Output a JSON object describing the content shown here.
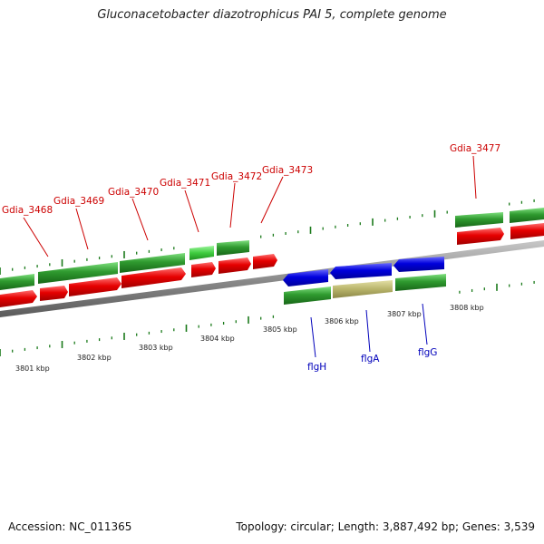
{
  "title": "Gluconacetobacter diazotrophicus PAI 5, complete genome",
  "footer": {
    "accession": "Accession: NC_011365",
    "topology": "Topology: circular; Length: 3,887,492 bp; Genes: 3,539"
  },
  "colors": {
    "backbone": "#8c8c8c",
    "forward_gene": "#2f9a2f",
    "forward_gene_light": "#3fcc3f",
    "cds": "#e60000",
    "reverse_gene": "#0000dd",
    "reverse_cds": "#2f9a2f",
    "pseudo": "#b8b46a",
    "forward_label": "#cc0000",
    "reverse_label": "#0000bb",
    "tick": "#1a7a1a"
  },
  "scale_labels": [
    "3801 kbp",
    "3802 kbp",
    "3803 kbp",
    "3804 kbp",
    "3805 kbp",
    "3806 kbp",
    "3807 kbp",
    "3808 kbp"
  ],
  "forward_gene_labels": [
    "Gdia_3468",
    "Gdia_3469",
    "Gdia_3470",
    "Gdia_3471",
    "Gdia_3472",
    "Gdia_3473",
    "Gdia_3477"
  ],
  "reverse_gene_labels": [
    "flgH",
    "flgA",
    "flgG"
  ]
}
